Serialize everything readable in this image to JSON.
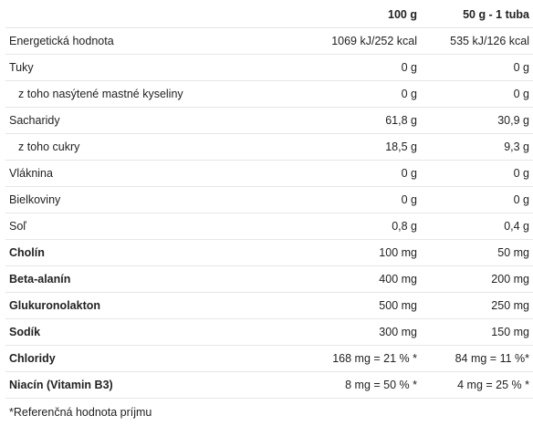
{
  "table": {
    "headers": {
      "name": "",
      "col1": "100 g",
      "col2": "50 g - 1 tuba"
    },
    "rows": [
      {
        "name": "Energetická hodnota",
        "col1": "1069 kJ/252 kcal",
        "col2": "535 kJ/126 kcal",
        "bold": false,
        "indent": false
      },
      {
        "name": "Tuky",
        "col1": "0 g",
        "col2": "0 g",
        "bold": false,
        "indent": false
      },
      {
        "name": "z toho nasýtené mastné kyseliny",
        "col1": "0 g",
        "col2": "0 g",
        "bold": false,
        "indent": true
      },
      {
        "name": "Sacharidy",
        "col1": "61,8 g",
        "col2": "30,9 g",
        "bold": false,
        "indent": false
      },
      {
        "name": "z toho cukry",
        "col1": "18,5 g",
        "col2": "9,3 g",
        "bold": false,
        "indent": true
      },
      {
        "name": "Vláknina",
        "col1": "0 g",
        "col2": "0 g",
        "bold": false,
        "indent": false
      },
      {
        "name": "Bielkoviny",
        "col1": "0 g",
        "col2": "0 g",
        "bold": false,
        "indent": false
      },
      {
        "name": "Soľ",
        "col1": "0,8 g",
        "col2": "0,4 g",
        "bold": false,
        "indent": false
      },
      {
        "name": "Cholín",
        "col1": "100 mg",
        "col2": "50 mg",
        "bold": true,
        "indent": false
      },
      {
        "name": "Beta-alanín",
        "col1": "400 mg",
        "col2": "200 mg",
        "bold": true,
        "indent": false
      },
      {
        "name": "Glukuronolakton",
        "col1": "500 mg",
        "col2": "250 mg",
        "bold": true,
        "indent": false
      },
      {
        "name": "Sodík",
        "col1": "300 mg",
        "col2": "150 mg",
        "bold": true,
        "indent": false
      },
      {
        "name": "Chloridy",
        "col1": "168 mg = 21 % *",
        "col2": "84 mg = 11 %*",
        "bold": true,
        "indent": false
      },
      {
        "name": "Niacín (Vitamin B3)",
        "col1": "8 mg = 50 % *",
        "col2": "4 mg = 25 % *",
        "bold": true,
        "indent": false
      }
    ]
  },
  "footnote": "*Referenčná hodnota príjmu"
}
